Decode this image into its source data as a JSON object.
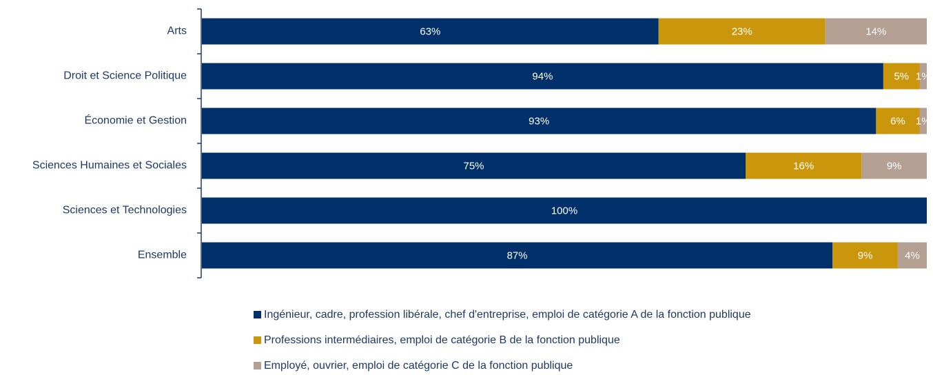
{
  "chart_data": {
    "type": "stacked_barh",
    "categories": [
      "Arts",
      "Droit et Science Politique",
      "Économie et Gestion",
      "Sciences Humaines et Sociales",
      "Sciences et Technologies",
      "Ensemble"
    ],
    "xlim": [
      0,
      100
    ],
    "series": [
      {
        "name": "Ingénieur, cadre, profession libérale, chef d'entreprise, emploi de catégorie A de la fonction publique",
        "color": "#003069",
        "values": [
          63,
          94,
          93,
          75,
          100,
          87
        ],
        "value_labels": [
          "63%",
          "94%",
          "93%",
          "75%",
          "100%",
          "87%"
        ]
      },
      {
        "name": "Professions intermédiaires, emploi de catégorie B de la fonction publique",
        "color": "#c9960c",
        "values": [
          23,
          5,
          6,
          16,
          0,
          9
        ],
        "value_labels": [
          "23%",
          "5%",
          "6%",
          "16%",
          null,
          "9%"
        ]
      },
      {
        "name": "Employé, ouvrier, emploi de catégorie C de la fonction publique",
        "color": "#b4a092",
        "values": [
          14,
          1,
          1,
          9,
          0,
          4
        ],
        "value_labels": [
          "14%",
          "1%",
          "1%",
          "9%",
          null,
          "4%"
        ]
      }
    ]
  }
}
